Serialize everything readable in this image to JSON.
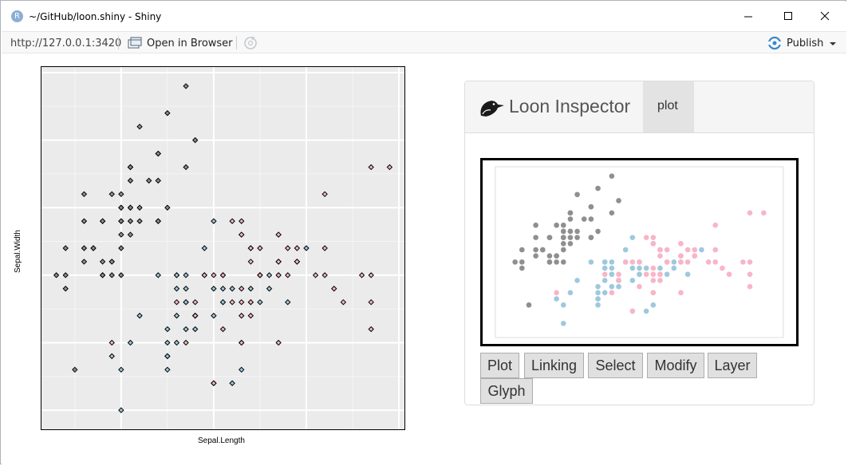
{
  "window": {
    "app_icon_letter": "R",
    "title": "~/GitHub/loon.shiny - Shiny"
  },
  "toolbar": {
    "url": "http://127.0.0.1:3420",
    "open_in_browser": "Open in Browser",
    "publish": "Publish"
  },
  "plot": {
    "xlabel": "Sepal.Length",
    "ylabel": "Sepal.Width"
  },
  "inspector": {
    "title": "Loon Inspector",
    "tab": "plot",
    "buttons": [
      "Plot",
      "Linking",
      "Select",
      "Modify",
      "Layer",
      "Glyph"
    ]
  },
  "colors": {
    "setosa": "#8f8f8f",
    "versicolor": "#9ec9dd",
    "virginica": "#f8b5c8",
    "panel_bg": "#ebebeb"
  },
  "chart_data": {
    "type": "scatter",
    "xlabel": "Sepal.Length",
    "ylabel": "Sepal.Width",
    "xlim": [
      4.2,
      8.0
    ],
    "ylim": [
      1.9,
      4.5
    ],
    "series": [
      {
        "values_x": [
          5.1,
          4.9,
          4.7,
          4.6,
          5.0,
          5.4,
          4.6,
          5.0,
          4.4,
          4.9,
          5.4,
          4.8,
          4.8,
          4.3,
          5.8,
          5.7,
          5.4,
          5.1,
          5.7,
          5.1,
          5.4,
          5.1,
          4.6,
          5.1,
          4.8,
          5.0,
          5.0,
          5.2,
          5.2,
          4.7,
          4.8,
          5.4,
          5.2,
          5.5,
          4.9,
          5.0,
          5.5,
          4.9,
          4.4,
          5.1,
          5.0,
          4.5,
          4.4,
          5.0,
          5.1,
          4.8,
          5.1,
          4.6,
          5.3,
          5.0
        ],
        "values_y": [
          3.5,
          3.0,
          3.2,
          3.1,
          3.6,
          3.9,
          3.4,
          3.4,
          2.9,
          3.1,
          3.7,
          3.4,
          3.0,
          3.0,
          4.0,
          4.4,
          3.9,
          3.5,
          3.8,
          3.8,
          3.4,
          3.7,
          3.6,
          3.3,
          3.4,
          3.0,
          3.4,
          3.5,
          3.4,
          3.2,
          3.1,
          3.4,
          4.1,
          4.2,
          3.1,
          3.2,
          3.5,
          3.6,
          3.0,
          3.4,
          3.5,
          2.3,
          3.2,
          3.5,
          3.8,
          3.0,
          3.8,
          3.2,
          3.7,
          3.3
        ]
      },
      {
        "values_x": [
          7.0,
          6.4,
          6.9,
          5.5,
          6.5,
          5.7,
          6.3,
          4.9,
          6.6,
          5.2,
          5.0,
          5.9,
          6.0,
          6.1,
          5.6,
          6.7,
          5.6,
          5.8,
          6.2,
          5.6,
          5.9,
          6.1,
          6.3,
          6.1,
          6.4,
          6.6,
          6.8,
          6.7,
          6.0,
          5.7,
          5.5,
          5.5,
          5.8,
          6.0,
          5.4,
          6.0,
          6.7,
          6.3,
          5.6,
          5.5,
          5.5,
          6.1,
          5.8,
          5.0,
          5.6,
          5.7,
          5.7,
          6.2,
          5.1,
          5.7
        ],
        "values_y": [
          3.2,
          3.2,
          3.1,
          2.3,
          2.8,
          2.8,
          3.3,
          2.4,
          2.9,
          2.7,
          2.0,
          3.0,
          2.2,
          2.9,
          2.9,
          3.1,
          3.0,
          2.7,
          2.2,
          2.5,
          3.2,
          2.8,
          2.5,
          2.8,
          2.9,
          3.0,
          2.8,
          3.0,
          2.9,
          2.6,
          2.4,
          2.4,
          2.7,
          2.7,
          3.0,
          3.4,
          3.1,
          2.3,
          3.0,
          2.5,
          2.6,
          3.0,
          2.6,
          2.3,
          2.7,
          3.0,
          2.9,
          2.9,
          2.5,
          2.8
        ]
      },
      {
        "values_x": [
          6.3,
          5.8,
          7.1,
          6.3,
          6.5,
          7.6,
          4.9,
          7.3,
          6.7,
          7.2,
          6.5,
          6.4,
          6.8,
          5.7,
          5.8,
          6.4,
          6.5,
          7.7,
          7.7,
          6.0,
          6.9,
          5.6,
          7.7,
          6.3,
          6.7,
          7.2,
          6.2,
          6.1,
          6.4,
          7.2,
          7.4,
          7.9,
          6.4,
          6.3,
          6.1,
          7.7,
          6.3,
          6.4,
          6.0,
          6.9,
          6.7,
          6.9,
          5.8,
          6.8,
          6.7,
          6.7,
          6.3,
          6.5,
          6.2,
          5.9
        ],
        "values_y": [
          3.3,
          2.7,
          3.0,
          2.9,
          3.0,
          3.0,
          2.5,
          2.9,
          2.5,
          3.6,
          3.2,
          2.7,
          3.0,
          2.5,
          2.8,
          3.2,
          3.0,
          3.8,
          2.6,
          2.2,
          3.2,
          2.8,
          2.8,
          2.7,
          3.3,
          3.2,
          2.8,
          3.0,
          2.8,
          3.0,
          2.8,
          3.8,
          2.8,
          2.8,
          2.6,
          3.0,
          3.4,
          3.1,
          3.0,
          3.1,
          3.1,
          3.1,
          2.7,
          3.2,
          3.3,
          3.0,
          2.5,
          3.0,
          3.4,
          3.0
        ]
      }
    ],
    "grid": true
  }
}
